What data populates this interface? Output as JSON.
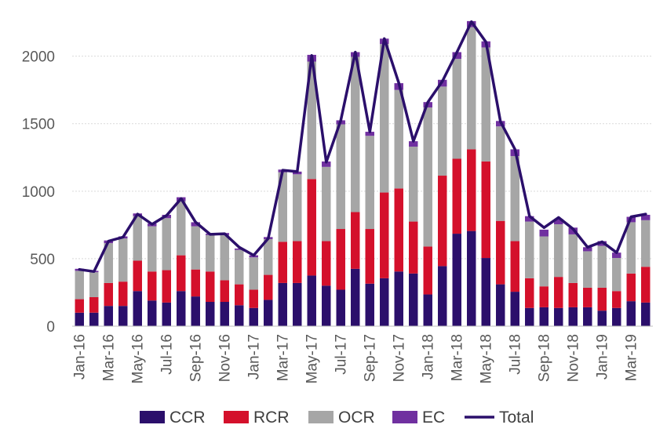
{
  "chart_data": {
    "type": "bar",
    "stacked": true,
    "combo_line": "Total",
    "categories": [
      "Jan-16",
      "Feb-16",
      "Mar-16",
      "Apr-16",
      "May-16",
      "Jun-16",
      "Jul-16",
      "Aug-16",
      "Sep-16",
      "Oct-16",
      "Nov-16",
      "Dec-16",
      "Jan-17",
      "Feb-17",
      "Mar-17",
      "Apr-17",
      "May-17",
      "Jun-17",
      "Jul-17",
      "Aug-17",
      "Sep-17",
      "Oct-17",
      "Nov-17",
      "Dec-17",
      "Jan-18",
      "Feb-18",
      "Mar-18",
      "Apr-18",
      "May-18",
      "Jun-18",
      "Jul-18",
      "Aug-18",
      "Sep-18",
      "Oct-18",
      "Nov-18",
      "Dec-18",
      "Jan-19",
      "Feb-19",
      "Mar-19",
      "Apr-19"
    ],
    "x_tick_labels": [
      "Jan-16",
      "Mar-16",
      "May-16",
      "Jul-16",
      "Sep-16",
      "Nov-16",
      "Jan-17",
      "Mar-17",
      "May-17",
      "Jul-17",
      "Sep-17",
      "Nov-17",
      "Jan-18",
      "Mar-18",
      "May-18",
      "Jul-18",
      "Sep-18",
      "Nov-18",
      "Jan-19",
      "Mar-19"
    ],
    "y_ticks": [
      0,
      500,
      1000,
      1500,
      2000
    ],
    "ylim": [
      0,
      2300
    ],
    "grid": true,
    "legend_position": "bottom",
    "series": [
      {
        "name": "CCR",
        "color": "#2b0f6b",
        "values": [
          100,
          100,
          150,
          150,
          260,
          190,
          175,
          260,
          220,
          180,
          180,
          155,
          135,
          195,
          320,
          320,
          375,
          300,
          270,
          425,
          315,
          355,
          405,
          390,
          235,
          445,
          685,
          705,
          505,
          310,
          255,
          135,
          140,
          135,
          140,
          140,
          115,
          135,
          185,
          175
        ]
      },
      {
        "name": "RCR",
        "color": "#d4102b",
        "values": [
          100,
          115,
          170,
          180,
          225,
          215,
          240,
          265,
          200,
          225,
          160,
          155,
          135,
          185,
          305,
          310,
          715,
          330,
          450,
          420,
          405,
          635,
          615,
          385,
          355,
          670,
          555,
          605,
          715,
          470,
          375,
          220,
          155,
          230,
          180,
          145,
          170,
          125,
          205,
          265
        ]
      },
      {
        "name": "OCR",
        "color": "#a6a6a6",
        "values": [
          210,
          185,
          295,
          320,
          330,
          335,
          385,
          400,
          320,
          270,
          335,
          255,
          240,
          265,
          515,
          495,
          870,
          550,
          775,
          1150,
          690,
          1100,
          730,
          555,
          1030,
          660,
          740,
          905,
          845,
          700,
          630,
          420,
          370,
          390,
          360,
          270,
          310,
          245,
          380,
          345
        ]
      },
      {
        "name": "EC",
        "color": "#7030a0",
        "values": [
          15,
          10,
          20,
          15,
          20,
          20,
          25,
          30,
          30,
          10,
          15,
          10,
          15,
          15,
          20,
          20,
          50,
          40,
          30,
          35,
          30,
          40,
          50,
          40,
          40,
          50,
          50,
          45,
          45,
          40,
          50,
          40,
          50,
          40,
          50,
          30,
          35,
          40,
          40,
          40
        ]
      }
    ],
    "total": {
      "name": "Total",
      "color": "#2b0f6b",
      "values": [
        420,
        405,
        630,
        660,
        830,
        755,
        820,
        945,
        770,
        680,
        685,
        585,
        525,
        650,
        1155,
        1145,
        2005,
        1215,
        1525,
        2030,
        1440,
        2130,
        1800,
        1370,
        1660,
        1815,
        2030,
        2255,
        2105,
        1515,
        1310,
        815,
        730,
        805,
        720,
        585,
        625,
        545,
        810,
        830
      ]
    }
  }
}
